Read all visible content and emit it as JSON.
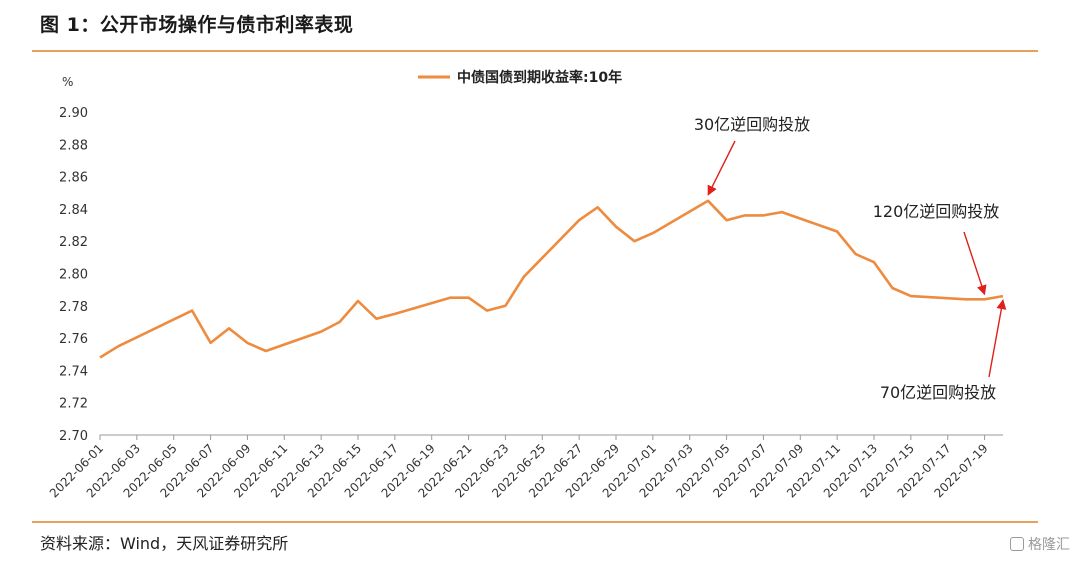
{
  "header": {
    "title": "图 1：公开市场操作与债市利率表现"
  },
  "footer": {
    "source": "资料来源：Wind，天风证券研究所",
    "watermark": "格隆汇"
  },
  "chart_data": {
    "type": "line",
    "title": "",
    "ylabel": "%",
    "ylim": [
      2.7,
      2.9
    ],
    "yticks": [
      "2.70",
      "2.72",
      "2.74",
      "2.76",
      "2.78",
      "2.80",
      "2.82",
      "2.84",
      "2.86",
      "2.88",
      "2.90"
    ],
    "xticks": [
      "2022-06-01",
      "2022-06-03",
      "2022-06-05",
      "2022-06-07",
      "2022-06-09",
      "2022-06-11",
      "2022-06-13",
      "2022-06-15",
      "2022-06-17",
      "2022-06-19",
      "2022-06-21",
      "2022-06-23",
      "2022-06-25",
      "2022-06-27",
      "2022-06-29",
      "2022-07-01",
      "2022-07-03",
      "2022-07-05",
      "2022-07-07",
      "2022-07-09",
      "2022-07-11",
      "2022-07-13",
      "2022-07-15",
      "2022-07-17",
      "2022-07-19"
    ],
    "grid": false,
    "legend": "top-center",
    "series": [
      {
        "name": "中债国债到期收益率:10年",
        "color": "#ed8b3f",
        "points": [
          [
            "2022-06-01",
            2.748
          ],
          [
            "2022-06-02",
            2.755
          ],
          [
            "2022-06-06",
            2.777
          ],
          [
            "2022-06-07",
            2.757
          ],
          [
            "2022-06-08",
            2.766
          ],
          [
            "2022-06-09",
            2.757
          ],
          [
            "2022-06-10",
            2.752
          ],
          [
            "2022-06-13",
            2.764
          ],
          [
            "2022-06-14",
            2.77
          ],
          [
            "2022-06-15",
            2.783
          ],
          [
            "2022-06-16",
            2.772
          ],
          [
            "2022-06-17",
            2.775
          ],
          [
            "2022-06-20",
            2.785
          ],
          [
            "2022-06-21",
            2.785
          ],
          [
            "2022-06-22",
            2.777
          ],
          [
            "2022-06-23",
            2.78
          ],
          [
            "2022-06-24",
            2.798
          ],
          [
            "2022-06-27",
            2.833
          ],
          [
            "2022-06-28",
            2.841
          ],
          [
            "2022-06-29",
            2.829
          ],
          [
            "2022-06-30",
            2.82
          ],
          [
            "2022-07-01",
            2.825
          ],
          [
            "2022-07-04",
            2.845
          ],
          [
            "2022-07-05",
            2.833
          ],
          [
            "2022-07-06",
            2.836
          ],
          [
            "2022-07-07",
            2.836
          ],
          [
            "2022-07-08",
            2.838
          ],
          [
            "2022-07-11",
            2.826
          ],
          [
            "2022-07-12",
            2.812
          ],
          [
            "2022-07-13",
            2.807
          ],
          [
            "2022-07-14",
            2.791
          ],
          [
            "2022-07-15",
            2.786
          ],
          [
            "2022-07-18",
            2.784
          ],
          [
            "2022-07-19",
            2.784
          ],
          [
            "2022-07-20",
            2.786
          ]
        ]
      }
    ],
    "annotations": [
      {
        "text": "30亿逆回购投放",
        "date": "2022-07-04",
        "value": 2.845,
        "color": "#e0201b"
      },
      {
        "text": "120亿逆回购投放",
        "date": "2022-07-19",
        "value": 2.784,
        "color": "#e0201b"
      },
      {
        "text": "70亿逆回购投放",
        "date": "2022-07-20",
        "value": 2.786,
        "color": "#e0201b"
      }
    ]
  }
}
